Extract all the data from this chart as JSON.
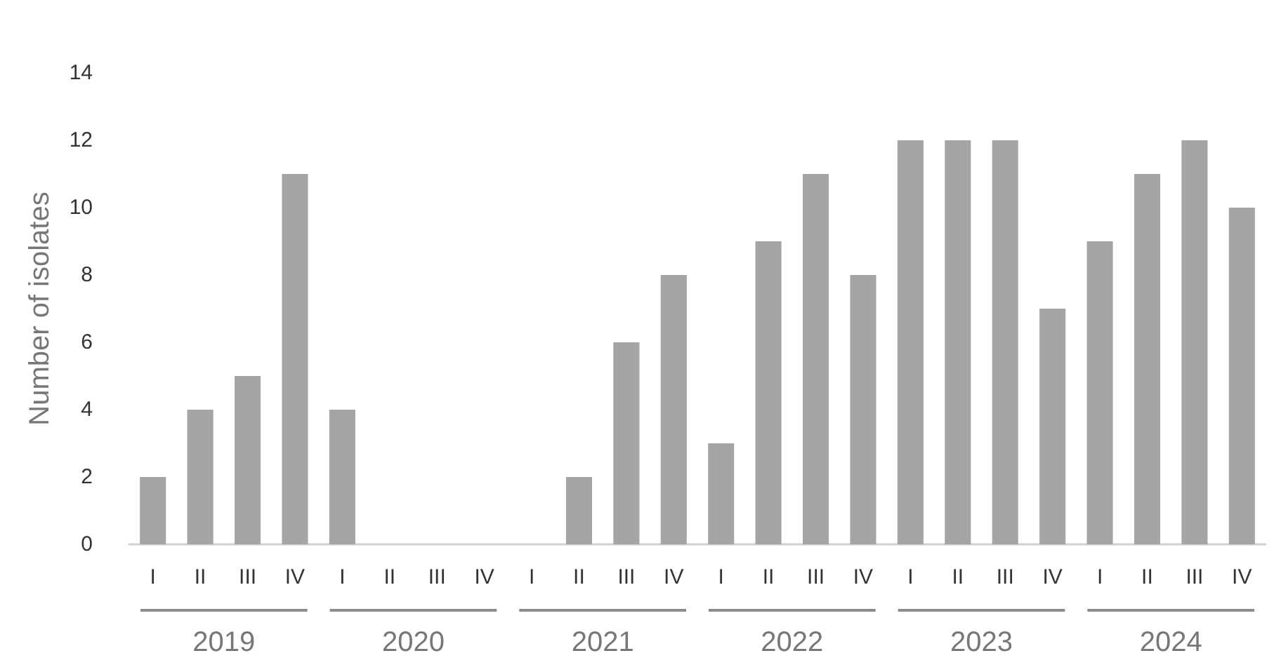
{
  "chart_data": {
    "type": "bar",
    "ylabel": "Number of isolates",
    "categories": [
      "I",
      "II",
      "III",
      "IV",
      "I",
      "II",
      "III",
      "IV",
      "I",
      "II",
      "III",
      "IV",
      "I",
      "II",
      "III",
      "IV",
      "I",
      "II",
      "III",
      "IV",
      "I",
      "II",
      "III",
      "IV"
    ],
    "values": [
      2,
      4,
      5,
      11,
      4,
      0,
      0,
      0,
      0,
      2,
      6,
      8,
      3,
      9,
      11,
      8,
      12,
      12,
      12,
      7,
      9,
      11,
      12,
      10
    ],
    "color": "#a5a5a5",
    "ylim": [
      0,
      14
    ],
    "yticks": [
      0,
      2,
      4,
      6,
      8,
      10,
      12,
      14
    ],
    "grid": false,
    "annotations": [
      "2019",
      "2020",
      "2021",
      "2022",
      "2023",
      "2024"
    ]
  }
}
